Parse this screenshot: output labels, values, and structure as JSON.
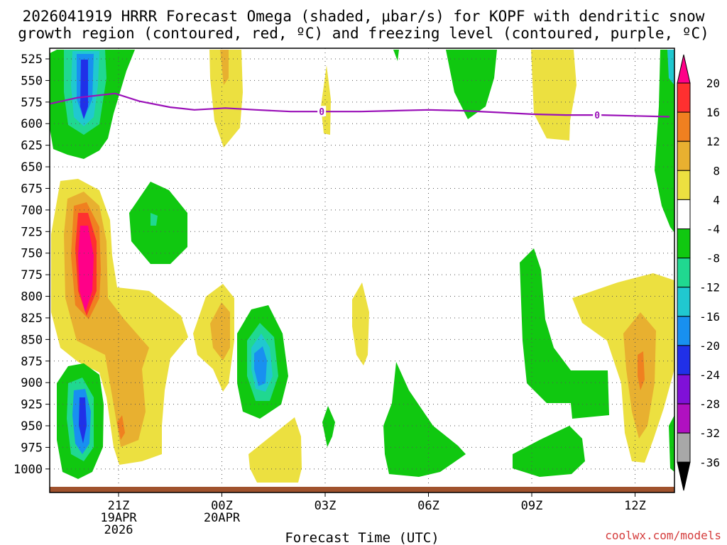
{
  "title_line1": "2026041919 HRRR Forecast Omega (shaded, μbar/s) for KOPF with dendritic snow",
  "title_line2": "growth region (contoured, red, ºC) and freezing level (contoured, purple, ºC)",
  "credit": "coolwx.com/models",
  "chart_data": {
    "type": "time-height contour",
    "title": "2026041919 HRRR Forecast Omega (shaded, μbar/s) for KOPF with dendritic snow growth region (contoured, red, ºC) and freezing level (contoured, purple, ºC)",
    "xlabel": "Forecast Time (UTC)",
    "ylabel": "",
    "xlim_hours": [
      19,
      37
    ],
    "ylim_mb": [
      1020,
      515
    ],
    "x_ticks": [
      {
        "hour": 21,
        "lines": [
          "21Z",
          "19APR",
          "2026"
        ]
      },
      {
        "hour": 24,
        "lines": [
          "00Z",
          "20APR"
        ]
      },
      {
        "hour": 27,
        "lines": [
          "03Z"
        ]
      },
      {
        "hour": 30,
        "lines": [
          "06Z"
        ]
      },
      {
        "hour": 33,
        "lines": [
          "09Z"
        ]
      },
      {
        "hour": 36,
        "lines": [
          "12Z"
        ]
      }
    ],
    "y_ticks": [
      525,
      550,
      575,
      600,
      625,
      650,
      675,
      700,
      725,
      750,
      775,
      800,
      825,
      850,
      875,
      900,
      925,
      950,
      975,
      1000
    ],
    "colorbar": {
      "levels": [
        20,
        16,
        12,
        8,
        4,
        -4,
        -8,
        -12,
        -16,
        -20,
        -24,
        -28,
        -32,
        -36
      ],
      "colors": [
        "#ff0088",
        "#ff3030",
        "#f08020",
        "#e8b030",
        "#ece040",
        "#ffffff",
        "#10c810",
        "#20d890",
        "#20c8d0",
        "#1890f0",
        "#2030e8",
        "#8010d8",
        "#b010c0",
        "#a8a8a8",
        "#000000"
      ]
    },
    "freezing_level": {
      "label": "0",
      "points": [
        [
          19.0,
          577
        ],
        [
          19.8,
          570
        ],
        [
          20.9,
          565
        ],
        [
          21.6,
          574
        ],
        [
          22.5,
          581
        ],
        [
          23.2,
          584
        ],
        [
          24.1,
          582
        ],
        [
          25.0,
          584
        ],
        [
          26.0,
          586
        ],
        [
          27.0,
          586
        ],
        [
          28.0,
          586
        ],
        [
          29.0,
          585
        ],
        [
          30.0,
          584
        ],
        [
          31.0,
          585
        ],
        [
          32.0,
          587
        ],
        [
          33.0,
          589
        ],
        [
          34.0,
          590
        ],
        [
          35.0,
          590
        ],
        [
          36.0,
          591
        ],
        [
          37.0,
          592
        ]
      ],
      "label_positions": [
        [
          26.9,
          586
        ],
        [
          34.9,
          590
        ]
      ]
    },
    "ground_level_mb": 1014
  }
}
